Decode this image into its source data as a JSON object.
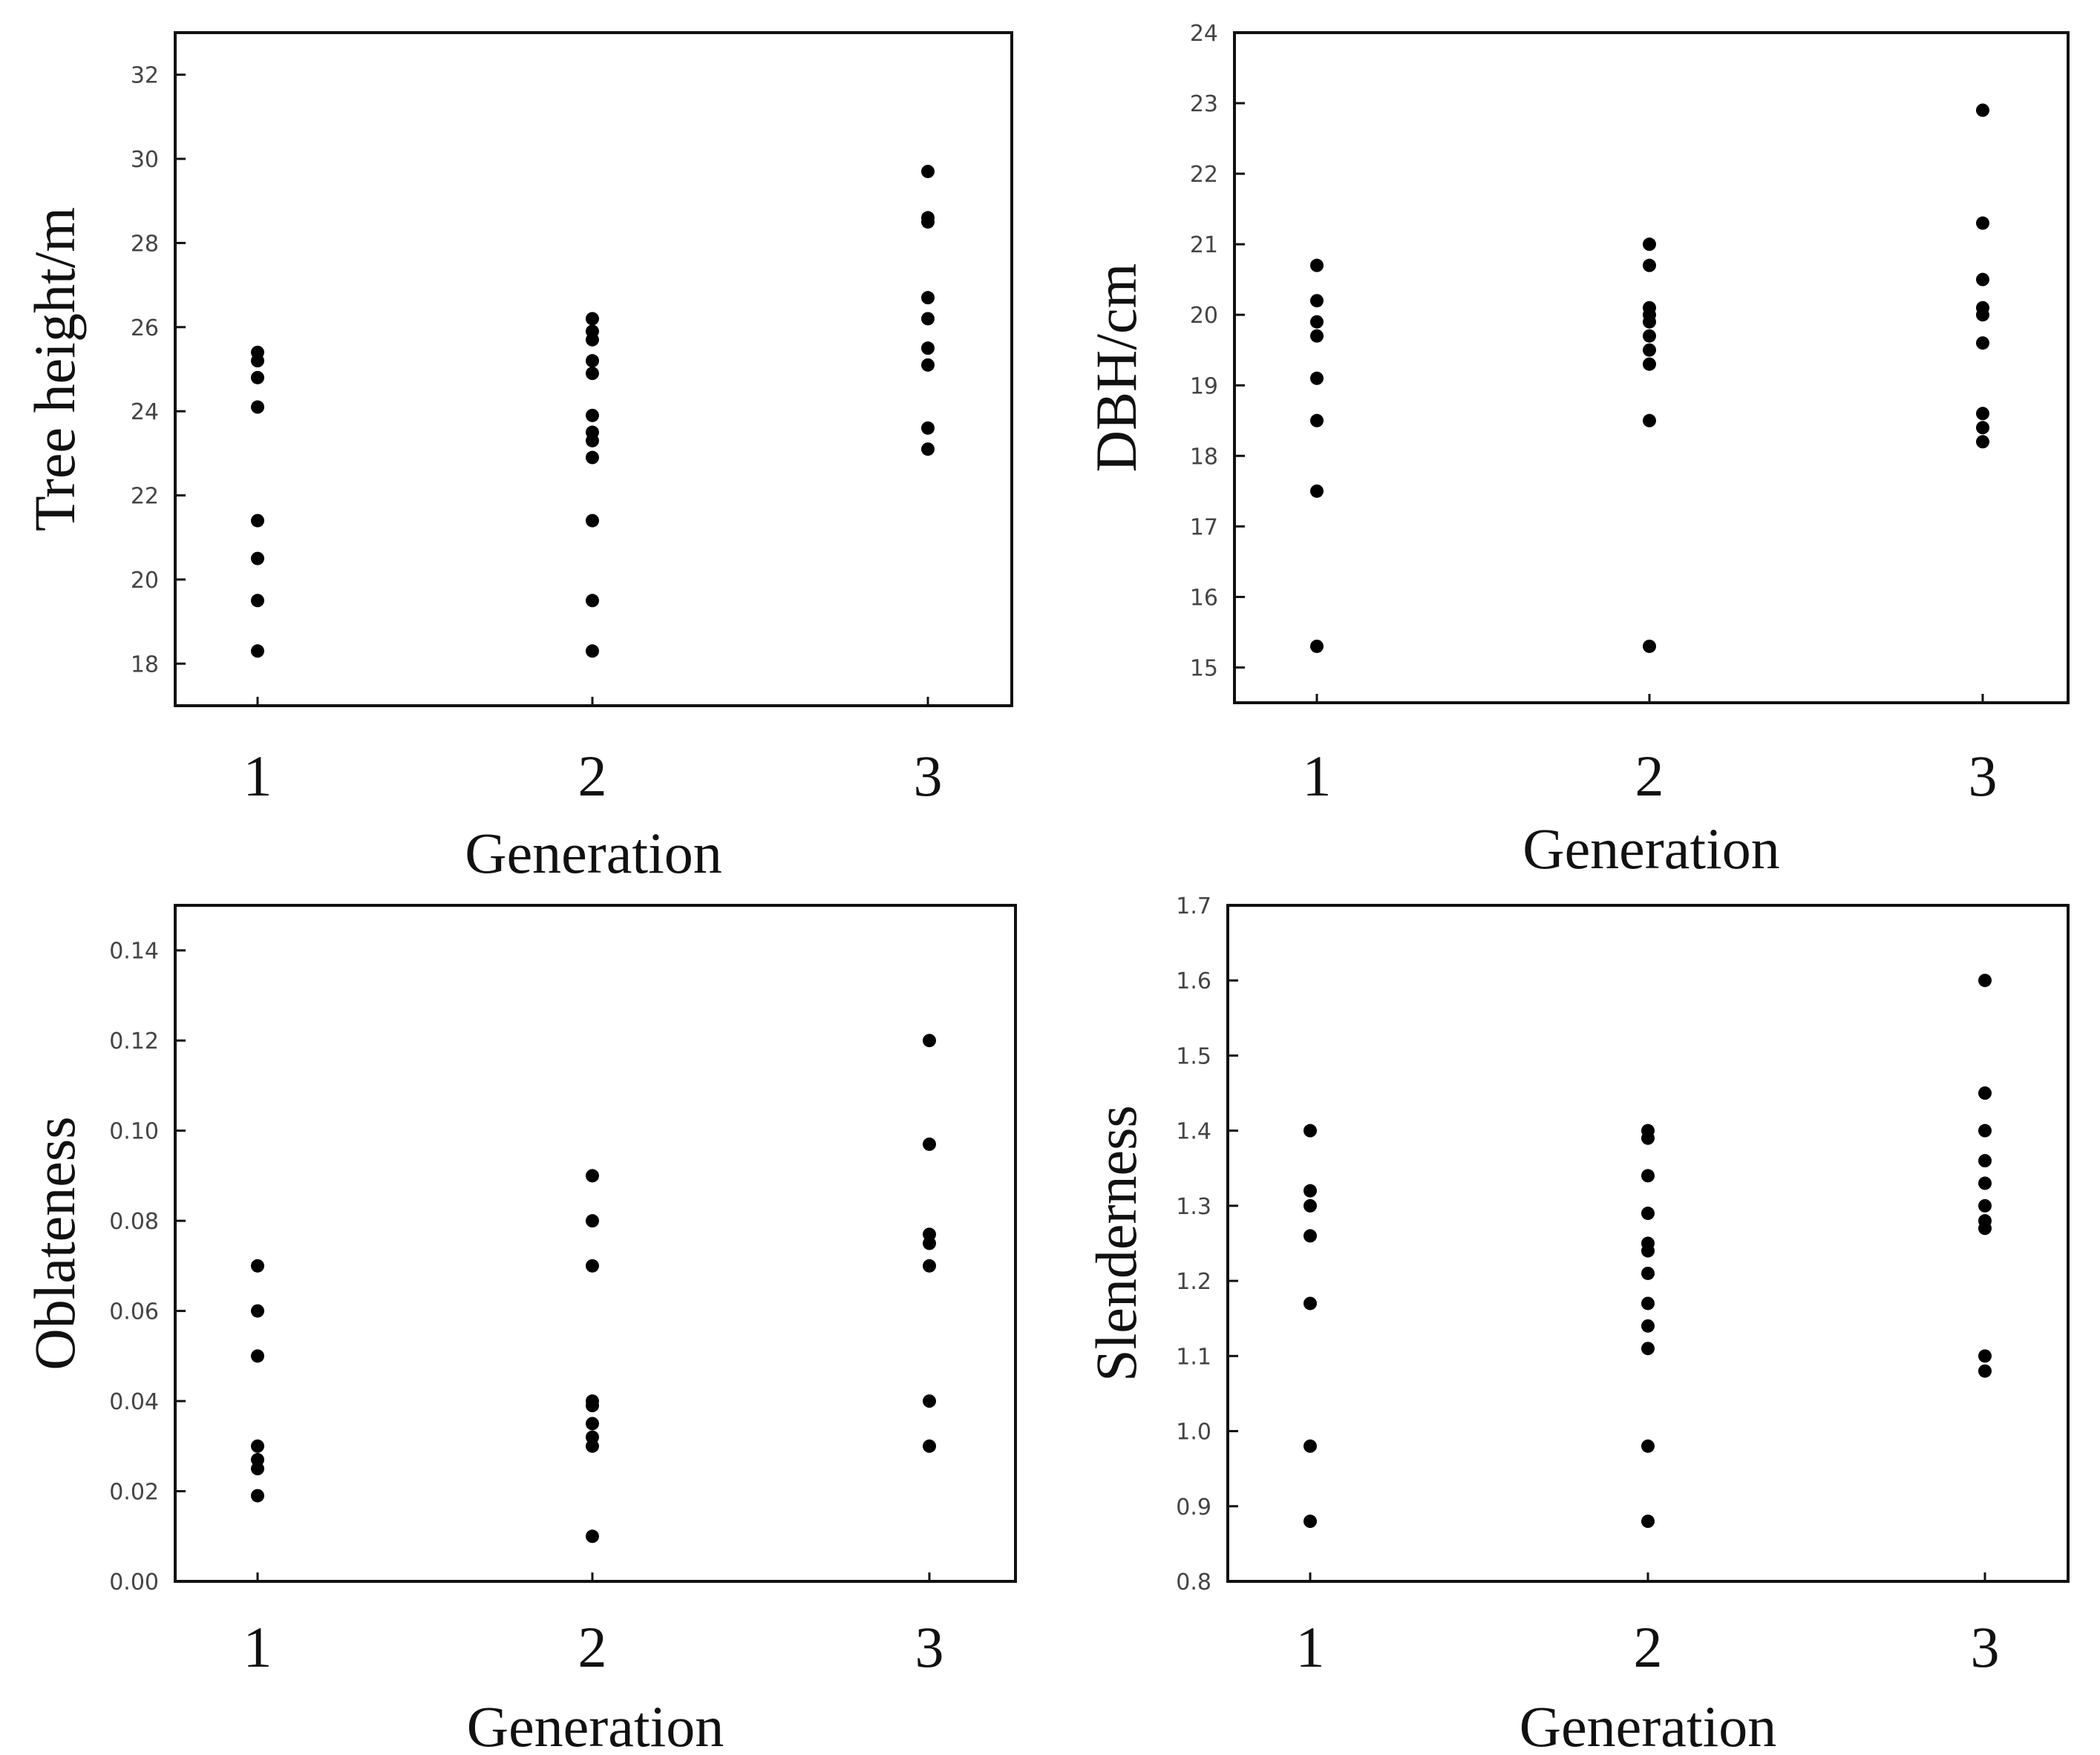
{
  "chart_data": [
    {
      "type": "scatter",
      "xlabel": "Generation",
      "ylabel": "Tree height/m",
      "categories": [
        "1",
        "2",
        "3"
      ],
      "ylim": [
        17,
        33
      ],
      "yticks": [
        "18",
        "20",
        "22",
        "24",
        "26",
        "28",
        "30",
        "32"
      ],
      "series": [
        {
          "name": "1",
          "values": [
            25.4,
            25.2,
            24.8,
            24.1,
            21.4,
            20.5,
            19.5,
            18.3
          ]
        },
        {
          "name": "2",
          "values": [
            26.2,
            25.9,
            25.7,
            25.2,
            24.9,
            23.9,
            23.5,
            23.3,
            22.9,
            21.4,
            19.5,
            18.3
          ]
        },
        {
          "name": "3",
          "values": [
            29.7,
            28.6,
            28.5,
            26.7,
            26.2,
            25.5,
            25.1,
            23.6,
            23.1
          ]
        }
      ]
    },
    {
      "type": "scatter",
      "xlabel": "Generation",
      "ylabel": "DBH/cm",
      "categories": [
        "1",
        "2",
        "3"
      ],
      "ylim": [
        14.5,
        24
      ],
      "yticks": [
        "15",
        "16",
        "17",
        "18",
        "19",
        "20",
        "21",
        "22",
        "23",
        "24"
      ],
      "series": [
        {
          "name": "1",
          "values": [
            20.7,
            20.2,
            19.9,
            19.7,
            19.1,
            18.5,
            17.5,
            15.3
          ]
        },
        {
          "name": "2",
          "values": [
            21.0,
            20.7,
            20.1,
            20.0,
            19.9,
            19.7,
            19.5,
            19.3,
            18.5,
            15.3
          ]
        },
        {
          "name": "3",
          "values": [
            22.9,
            21.3,
            20.5,
            20.1,
            20.0,
            19.6,
            18.6,
            18.4,
            18.2
          ]
        }
      ]
    },
    {
      "type": "scatter",
      "xlabel": "Generation",
      "ylabel": "Oblateness",
      "categories": [
        "1",
        "2",
        "3"
      ],
      "ylim": [
        0,
        0.15
      ],
      "yticks": [
        "0.00",
        "0.02",
        "0.04",
        "0.06",
        "0.08",
        "0.10",
        "0.12",
        "0.14"
      ],
      "series": [
        {
          "name": "1",
          "values": [
            0.07,
            0.06,
            0.05,
            0.03,
            0.027,
            0.025,
            0.019
          ]
        },
        {
          "name": "2",
          "values": [
            0.09,
            0.08,
            0.07,
            0.04,
            0.039,
            0.035,
            0.032,
            0.03,
            0.01
          ]
        },
        {
          "name": "3",
          "values": [
            0.12,
            0.097,
            0.077,
            0.075,
            0.07,
            0.04,
            0.03
          ]
        }
      ]
    },
    {
      "type": "scatter",
      "xlabel": "Generation",
      "ylabel": "Slenderness",
      "categories": [
        "1",
        "2",
        "3"
      ],
      "ylim": [
        0.8,
        1.7
      ],
      "yticks": [
        "0.8",
        "0.9",
        "1.0",
        "1.1",
        "1.2",
        "1.3",
        "1.4",
        "1.5",
        "1.6",
        "1.7"
      ],
      "series": [
        {
          "name": "1",
          "values": [
            1.4,
            1.32,
            1.3,
            1.26,
            1.17,
            0.98,
            0.88
          ]
        },
        {
          "name": "2",
          "values": [
            1.4,
            1.39,
            1.34,
            1.29,
            1.25,
            1.24,
            1.21,
            1.17,
            1.14,
            1.11,
            0.98,
            0.88
          ]
        },
        {
          "name": "3",
          "values": [
            1.6,
            1.45,
            1.4,
            1.36,
            1.33,
            1.3,
            1.28,
            1.27,
            1.1,
            1.08
          ]
        }
      ]
    }
  ]
}
